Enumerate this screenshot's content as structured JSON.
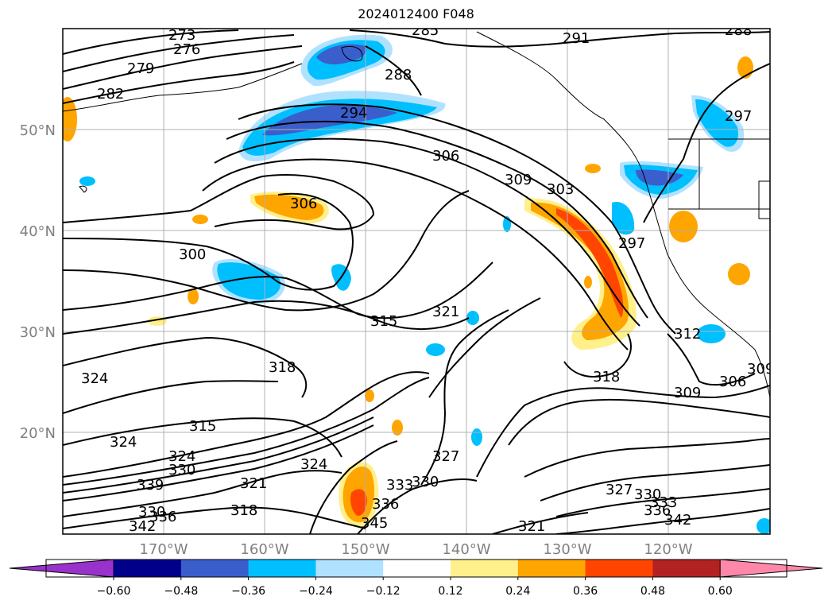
{
  "title": "2024012400 F048",
  "lat_labels": [
    "50°N",
    "40°N",
    "30°N",
    "20°N"
  ],
  "lon_labels": [
    "170°W",
    "160°W",
    "150°W",
    "140°W",
    "130°W",
    "120°W"
  ],
  "colorbar": {
    "ticks": [
      "−0.60",
      "−0.48",
      "−0.36",
      "−0.24",
      "−0.12",
      "0.12",
      "0.24",
      "0.36",
      "0.48",
      "0.60"
    ],
    "colors": [
      "#9932cc",
      "#00008b",
      "#3a5fcd",
      "#00bfff",
      "#b0e2ff",
      "#ffffff",
      "#fff08c",
      "#ffa500",
      "#ff4500",
      "#b22222",
      "#ff88aa"
    ]
  },
  "contour_labels": [
    {
      "name": "contour-label-273",
      "text": "273"
    },
    {
      "name": "contour-label-276",
      "text": "276"
    },
    {
      "name": "contour-label-279",
      "text": "279"
    },
    {
      "name": "contour-label-282",
      "text": "282"
    },
    {
      "name": "contour-label-285",
      "text": "285"
    },
    {
      "name": "contour-label-288",
      "text": "288"
    },
    {
      "name": "contour-label-291",
      "text": "291"
    },
    {
      "name": "contour-label-288b",
      "text": "288"
    },
    {
      "name": "contour-label-294",
      "text": "294"
    },
    {
      "name": "contour-label-297",
      "text": "297"
    },
    {
      "name": "contour-label-306",
      "text": "306"
    },
    {
      "name": "contour-label-306b",
      "text": "306"
    },
    {
      "name": "contour-label-309",
      "text": "309"
    },
    {
      "name": "contour-label-303",
      "text": "303"
    },
    {
      "name": "contour-label-300",
      "text": "300"
    },
    {
      "name": "contour-label-297b",
      "text": "297"
    },
    {
      "name": "contour-label-315",
      "text": "315"
    },
    {
      "name": "contour-label-321",
      "text": "321"
    },
    {
      "name": "contour-label-312",
      "text": "312"
    },
    {
      "name": "contour-label-324",
      "text": "324"
    },
    {
      "name": "contour-label-318",
      "text": "318"
    },
    {
      "name": "contour-label-318b",
      "text": "318"
    },
    {
      "name": "contour-label-309b",
      "text": "309"
    },
    {
      "name": "contour-label-306c",
      "text": "306"
    },
    {
      "name": "contour-label-315b",
      "text": "315"
    },
    {
      "name": "contour-label-324b",
      "text": "324"
    },
    {
      "name": "contour-label-324c",
      "text": "324"
    },
    {
      "name": "contour-label-330",
      "text": "330"
    },
    {
      "name": "contour-label-339",
      "text": "339"
    },
    {
      "name": "contour-label-327",
      "text": "327"
    },
    {
      "name": "contour-label-324d",
      "text": "324"
    },
    {
      "name": "contour-label-321b",
      "text": "321"
    },
    {
      "name": "contour-label-318c",
      "text": "318"
    },
    {
      "name": "contour-label-330b",
      "text": "330"
    },
    {
      "name": "contour-label-336",
      "text": "336"
    },
    {
      "name": "contour-label-342",
      "text": "342"
    },
    {
      "name": "contour-label-330c",
      "text": "330"
    },
    {
      "name": "contour-label-333",
      "text": "333"
    },
    {
      "name": "contour-label-336b",
      "text": "336"
    },
    {
      "name": "contour-label-345",
      "text": "345"
    },
    {
      "name": "contour-label-327b",
      "text": "327"
    },
    {
      "name": "contour-label-330d",
      "text": "330"
    },
    {
      "name": "contour-label-333b",
      "text": "333"
    },
    {
      "name": "contour-label-336c",
      "text": "336"
    },
    {
      "name": "contour-label-342b",
      "text": "342"
    },
    {
      "name": "contour-label-321c",
      "text": "321"
    },
    {
      "name": "contour-label-309c",
      "text": "309"
    }
  ]
}
